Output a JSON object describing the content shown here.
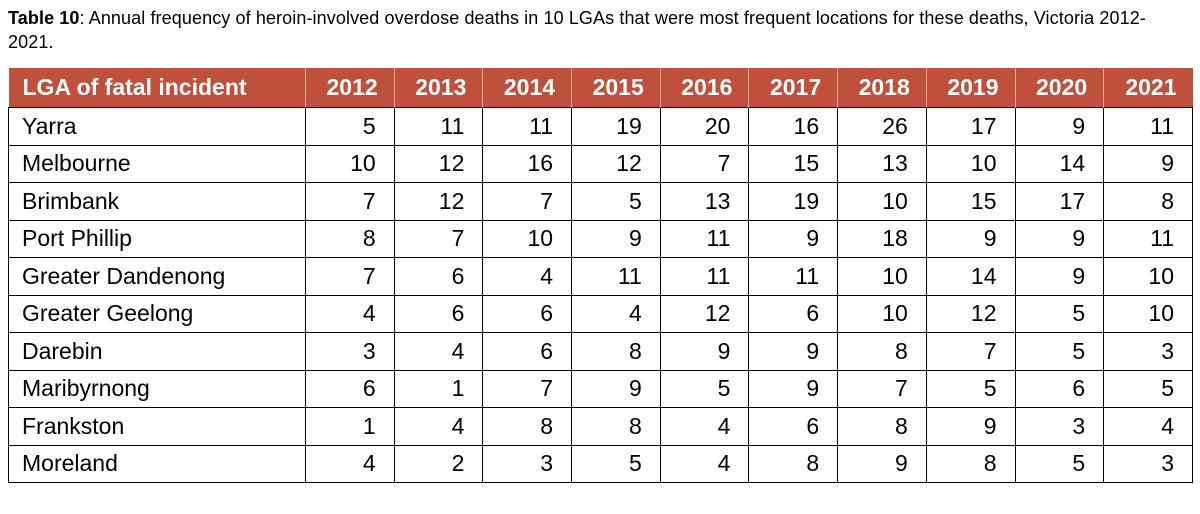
{
  "caption": {
    "label": "Table 10",
    "text": ": Annual frequency of heroin-involved overdose deaths in 10 LGAs that were most frequent locations for these deaths, Victoria 2012-2021."
  },
  "table": {
    "header": {
      "lga_column": "LGA of fatal incident",
      "years": [
        "2012",
        "2013",
        "2014",
        "2015",
        "2016",
        "2017",
        "2018",
        "2019",
        "2020",
        "2021"
      ]
    },
    "rows": [
      {
        "lga": "Yarra",
        "values": [
          5,
          11,
          11,
          19,
          20,
          16,
          26,
          17,
          9,
          11
        ]
      },
      {
        "lga": "Melbourne",
        "values": [
          10,
          12,
          16,
          12,
          7,
          15,
          13,
          10,
          14,
          9
        ]
      },
      {
        "lga": "Brimbank",
        "values": [
          7,
          12,
          7,
          5,
          13,
          19,
          10,
          15,
          17,
          8
        ]
      },
      {
        "lga": "Port Phillip",
        "values": [
          8,
          7,
          10,
          9,
          11,
          9,
          18,
          9,
          9,
          11
        ]
      },
      {
        "lga": "Greater Dandenong",
        "values": [
          7,
          6,
          4,
          11,
          11,
          11,
          10,
          14,
          9,
          10
        ]
      },
      {
        "lga": "Greater Geelong",
        "values": [
          4,
          6,
          6,
          4,
          12,
          6,
          10,
          12,
          5,
          10
        ]
      },
      {
        "lga": "Darebin",
        "values": [
          3,
          4,
          6,
          8,
          9,
          9,
          8,
          7,
          5,
          3
        ]
      },
      {
        "lga": "Maribyrnong",
        "values": [
          6,
          1,
          7,
          9,
          5,
          9,
          7,
          5,
          6,
          5
        ]
      },
      {
        "lga": "Frankston",
        "values": [
          1,
          4,
          8,
          8,
          4,
          6,
          8,
          9,
          3,
          4
        ]
      },
      {
        "lga": "Moreland",
        "values": [
          4,
          2,
          3,
          5,
          4,
          8,
          9,
          8,
          5,
          3
        ]
      }
    ]
  },
  "colors": {
    "header_bg": "#c0503c",
    "header_text": "#ffffff",
    "cell_border": "#000000",
    "cell_bg": "#ffffff"
  }
}
